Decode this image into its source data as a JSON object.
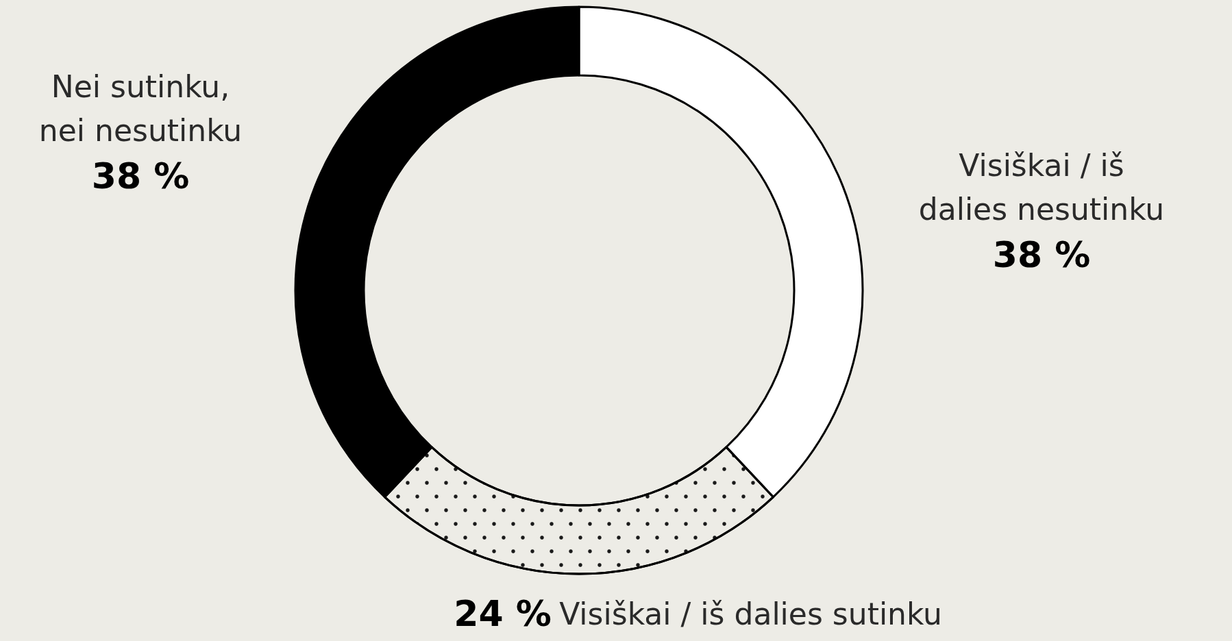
{
  "chart_data": {
    "type": "donut",
    "categories": [
      "Visiškai / iš dalies nesutinku",
      "Visiškai / iš dalies sutinku",
      "Nei sutinku, nei nesutinku"
    ],
    "values": [
      38,
      24,
      38
    ],
    "colors": [
      "#ffffff",
      "#edece6",
      "#000000"
    ],
    "value_labels": [
      "38 %",
      "24 %",
      "38 %"
    ],
    "legend": false
  }
}
